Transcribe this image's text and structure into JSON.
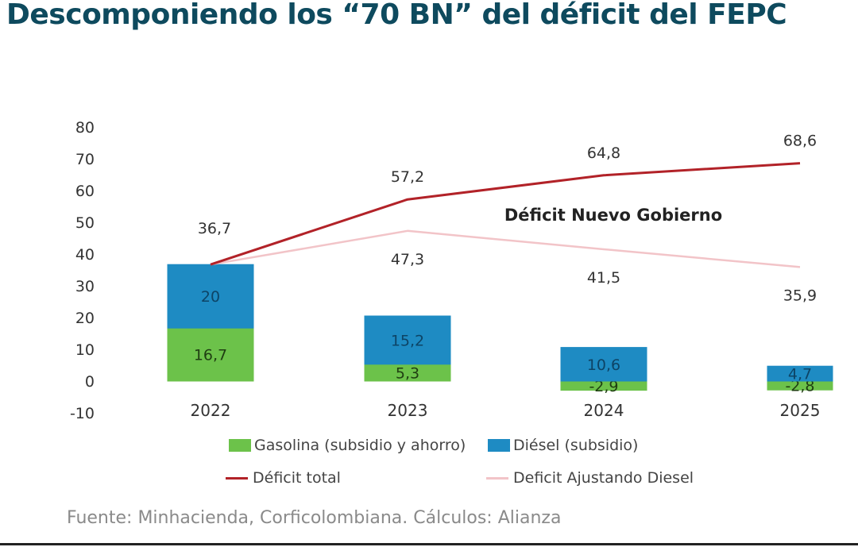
{
  "title": "Descomponiendo los “70 BN” del déficit del FEPC",
  "source": "Fuente: Minhacienda, Corficolombiana. Cálculos: Alianza",
  "chart_data": {
    "type": "bar",
    "stacked": true,
    "categories": [
      "2022",
      "2023",
      "2024",
      "2025"
    ],
    "series": [
      {
        "name": "Gasolina (subsidio y ahorro)",
        "kind": "bar",
        "color": "#6cc24a",
        "values": [
          16.7,
          5.3,
          -2.9,
          -2.8
        ],
        "labels": [
          "16,7",
          "5,3",
          "-2,9",
          "-2,8"
        ]
      },
      {
        "name": "Diésel (subsidio)",
        "kind": "bar",
        "color": "#1e8bc3",
        "values": [
          20,
          15.2,
          10.6,
          4.7
        ],
        "labels": [
          "20",
          "15,2",
          "10,6",
          "4,7"
        ]
      },
      {
        "name": "Déficit total",
        "kind": "line",
        "color": "#b22228",
        "values": [
          36.7,
          57.2,
          64.8,
          68.6
        ],
        "labels": [
          "36,7",
          "57,2",
          "64,8",
          "68,6"
        ]
      },
      {
        "name": "Deficit Ajustando Diesel",
        "kind": "line",
        "color": "#f2c4c8",
        "values": [
          36.7,
          47.3,
          41.5,
          35.9
        ],
        "labels": [
          "",
          "47,3",
          "41,5",
          "35,9"
        ]
      }
    ],
    "ylim": [
      -10,
      80
    ],
    "yticks": [
      "80",
      "70",
      "60",
      "50",
      "40",
      "30",
      "20",
      "10",
      "0",
      "-10"
    ],
    "annotation": "Déficit Nuevo Gobierno",
    "grid": false,
    "legend_position": "bottom"
  }
}
